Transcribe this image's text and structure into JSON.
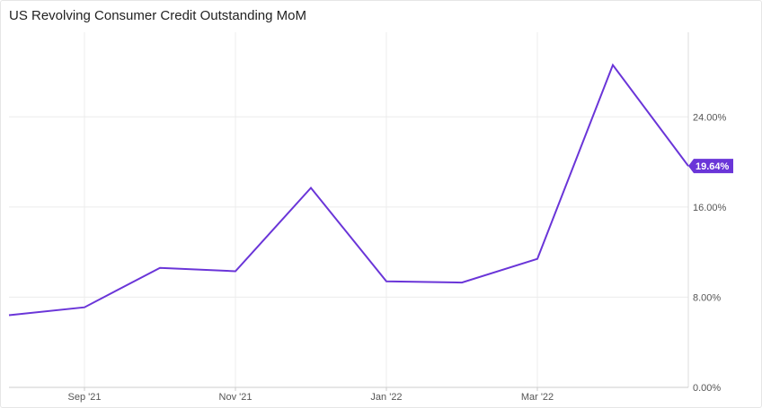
{
  "chart_data": {
    "type": "line",
    "title": "US Revolving Consumer Credit Outstanding MoM",
    "xlabel": "",
    "ylabel": "",
    "x": [
      "2021-08",
      "2021-09",
      "2021-10",
      "2021-11",
      "2021-12",
      "2022-01",
      "2022-02",
      "2022-03",
      "2022-04",
      "2022-05"
    ],
    "series": [
      {
        "values": [
          6.4,
          7.1,
          10.6,
          10.3,
          17.7,
          9.4,
          9.3,
          11.4,
          28.6,
          19.64
        ],
        "color": "#6a35d8"
      }
    ],
    "x_ticks": [
      {
        "x": "2021-09",
        "label": "Sep '21"
      },
      {
        "x": "2021-11",
        "label": "Nov '21"
      },
      {
        "x": "2022-01",
        "label": "Jan '22"
      },
      {
        "x": "2022-03",
        "label": "Mar '22"
      }
    ],
    "y_ticks": [
      {
        "value": 0,
        "label": "0.00%"
      },
      {
        "value": 8,
        "label": "8.00%"
      },
      {
        "value": 16,
        "label": "16.00%"
      },
      {
        "value": 24,
        "label": "24.00%"
      }
    ],
    "ylim": [
      0,
      31.5
    ],
    "grid": true,
    "y_axis_side": "right",
    "last_value_label": "19.64%",
    "last_value_color": "#6a35d8"
  }
}
